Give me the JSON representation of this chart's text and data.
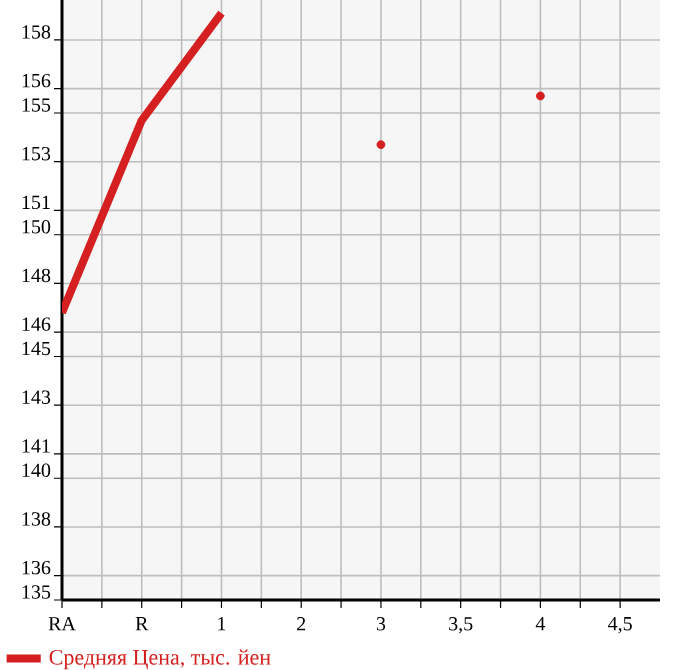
{
  "chart_data": {
    "type": "line",
    "categories": [
      "RA",
      "R",
      "1",
      "2",
      "3",
      "3,5",
      "4",
      "4,5"
    ],
    "series": [
      {
        "name": "Средняя Цена, тыс. йен",
        "color": "#d42020",
        "values": [
          146.8,
          154.7,
          159.1,
          null,
          153.7,
          null,
          155.7,
          null
        ]
      }
    ],
    "ylim": [
      135,
      159.64
    ],
    "yticks": [
      135,
      136,
      138,
      140,
      141,
      143,
      145,
      146,
      148,
      150,
      151,
      153,
      155,
      156,
      158
    ],
    "grid": true,
    "legend": "bottom",
    "marker": "none",
    "line_style": "solid"
  }
}
